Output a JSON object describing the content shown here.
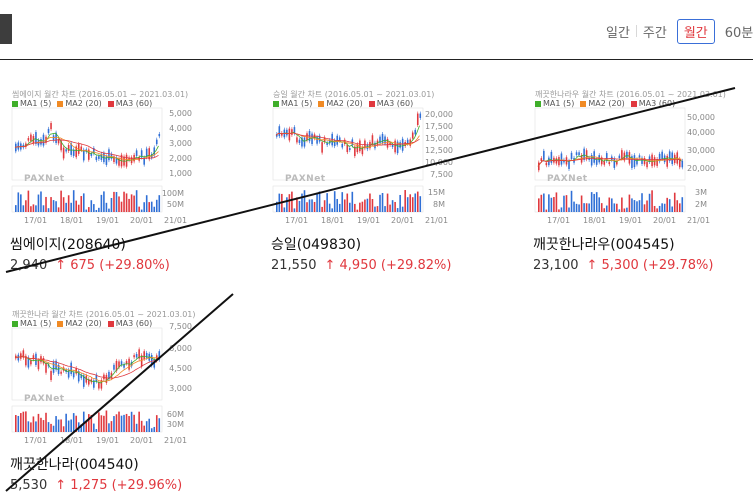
{
  "period_tabs": [
    {
      "label": "일간",
      "active": false
    },
    {
      "label": "주간",
      "active": false
    },
    {
      "label": "월간",
      "active": true
    },
    {
      "label": "60분",
      "active": false
    }
  ],
  "legend": {
    "ma1": "MA1 (5)",
    "ma2": "MA2 (20)",
    "ma3": "MA3 (60)",
    "colors": {
      "ma1": "#3fae2a",
      "ma2": "#f08a24",
      "ma3": "#e0383e"
    }
  },
  "colors": {
    "up": "#e0383e",
    "down": "#2f6fd6"
  },
  "logo_text": "PAXNet",
  "stocks": [
    {
      "chart_title": "씸에이지 월간 차트 (2016.05.01 ~ 2021.03.01)",
      "name": "씸에이지(208640)",
      "price": "2,940",
      "change": "↑ 675 (+29.80%)",
      "y_ticks": [
        "5,000",
        "4,000",
        "3,000",
        "2,000",
        "1,000"
      ],
      "v_ticks": [
        "100M",
        "50M"
      ],
      "x_ticks": [
        "17/01",
        "18/01",
        "19/01",
        "20/01",
        "21/01"
      ]
    },
    {
      "chart_title": "승일 월간 차트 (2016.05.01 ~ 2021.03.01)",
      "name": "승일(049830)",
      "price": "21,550",
      "change": "↑ 4,950 (+29.82%)",
      "y_ticks": [
        "20,000",
        "17,500",
        "15,000",
        "12,500",
        "10,000",
        "7,500"
      ],
      "v_ticks": [
        "15M",
        "8M"
      ],
      "x_ticks": [
        "17/01",
        "18/01",
        "19/01",
        "20/01",
        "21/01"
      ]
    },
    {
      "chart_title": "깨끗한나라우 월간 차트 (2016.05.01 ~ 2021.03.01)",
      "name": "깨끗한나라우(004545)",
      "price": "23,100",
      "change": "↑ 5,300 (+29.78%)",
      "y_ticks": [
        "50,000",
        "40,000",
        "30,000",
        "20,000"
      ],
      "v_ticks": [
        "3M",
        "2M"
      ],
      "x_ticks": [
        "17/01",
        "18/01",
        "19/01",
        "20/01",
        "21/01"
      ]
    },
    {
      "chart_title": "깨끗한나라 월간 차트 (2016.05.01 ~ 2021.03.01)",
      "name": "깨끗한나라(004540)",
      "price": "5,530",
      "change": "↑ 1,275 (+29.96%)",
      "y_ticks": [
        "7,500",
        "6,000",
        "4,500",
        "3,000"
      ],
      "v_ticks": [
        "60M",
        "30M"
      ],
      "x_ticks": [
        "17/01",
        "18/01",
        "19/01",
        "20/01",
        "21/01"
      ]
    }
  ]
}
